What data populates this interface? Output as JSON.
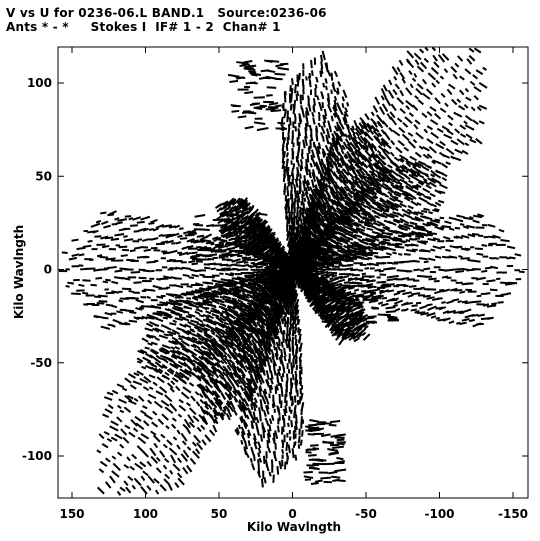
{
  "header": {
    "title_line_1": "V vs U for 0236-06.L BAND.1   Source:0236-06",
    "title_line_2": "Ants * - *     Stokes I  IF# 1 - 2  Chan# 1"
  },
  "chart_data": {
    "type": "scatter",
    "title": "V vs U for 0236-06.L BAND.1   Source:0236-06",
    "subtitle": "Ants * - *     Stokes I  IF# 1 - 2  Chan# 1",
    "xlabel": "Kilo Wavlngth",
    "ylabel": "Kilo Wavlngth",
    "xlim": [
      160,
      -160
    ],
    "ylim": [
      -125,
      122
    ],
    "x_ticks": [
      150,
      100,
      50,
      0,
      -50,
      -100,
      -150
    ],
    "y_ticks": [
      100,
      50,
      0,
      -50,
      -100
    ],
    "x_tick_labels": [
      "150",
      "100",
      "50",
      "0",
      "-50",
      "-100",
      "-150"
    ],
    "y_tick_labels": [
      "100",
      "50",
      "0",
      "-50",
      "-100"
    ],
    "grid": false,
    "marker_color": "#000000",
    "series": [
      {
        "arms": [
          {
            "u": -130,
            "v": 118
          },
          {
            "u": 130,
            "v": -118
          },
          {
            "u": -20,
            "v": 115
          },
          {
            "u": 20,
            "v": -115
          },
          {
            "u": -160,
            "v": 0
          },
          {
            "u": 160,
            "v": 0
          },
          {
            "u": -105,
            "v": 50
          },
          {
            "u": 105,
            "v": -50
          },
          {
            "u": 50,
            "v": 35
          },
          {
            "u": -50,
            "v": -35
          },
          {
            "u": -60,
            "v": 80
          },
          {
            "u": 60,
            "v": -80
          }
        ],
        "points_per_arm": 42
      }
    ]
  }
}
